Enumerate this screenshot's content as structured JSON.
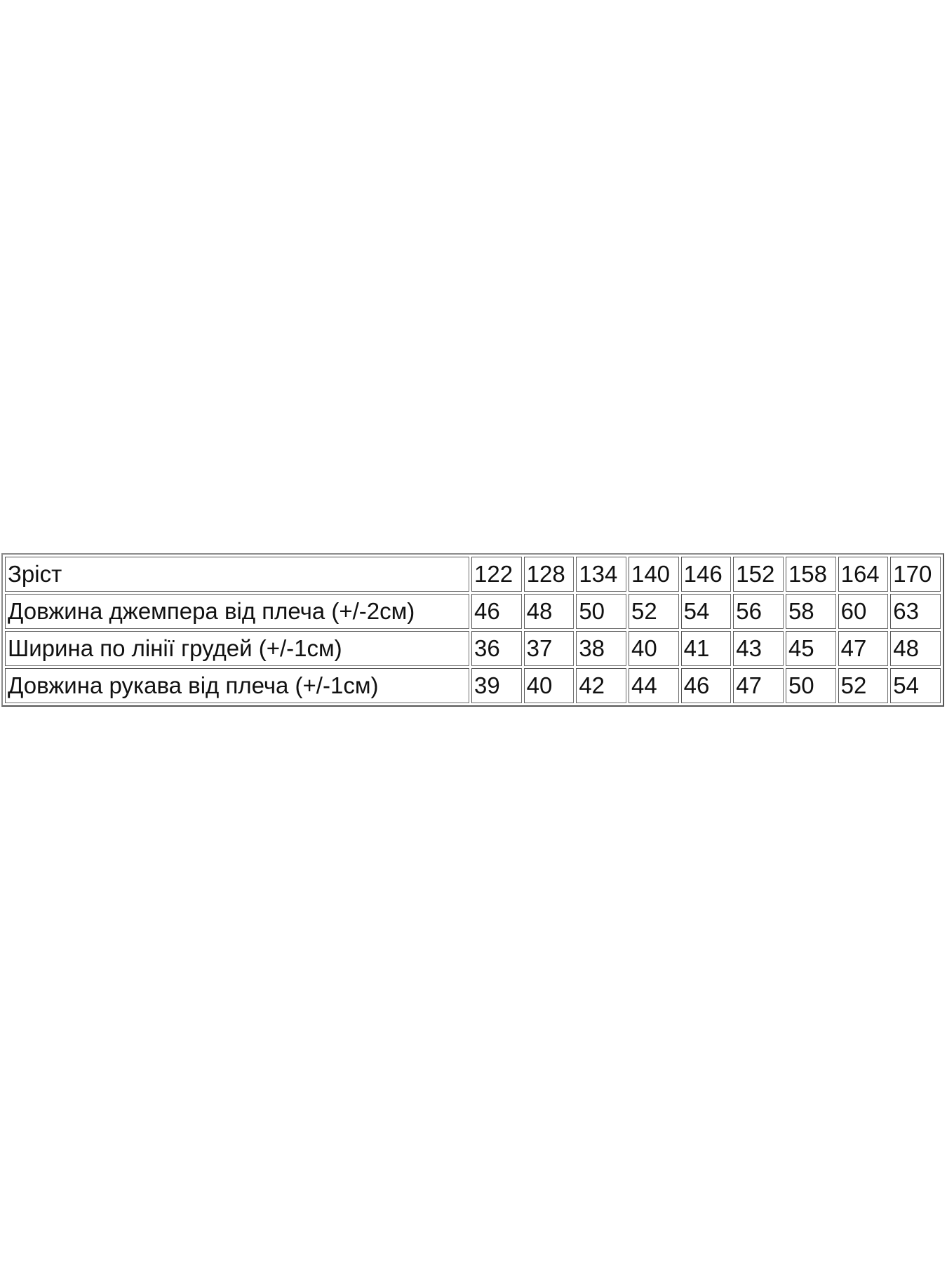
{
  "table": {
    "rows": [
      [
        "Зріст",
        "122",
        "128",
        "134",
        "140",
        "146",
        "152",
        "158",
        "164",
        "170"
      ],
      [
        "Довжина джемпера від плеча (+/-2см)",
        "46",
        "48",
        "50",
        "52",
        "54",
        "56",
        "58",
        "60",
        "63"
      ],
      [
        "Ширина по лінії грудей (+/-1см)",
        "36",
        "37",
        "38",
        "40",
        "41",
        "43",
        "45",
        "47",
        "48"
      ],
      [
        "Довжина рукава від плеча (+/-1см)",
        "39",
        "40",
        "42",
        "44",
        "46",
        "47",
        "50",
        "52",
        "54"
      ]
    ]
  }
}
